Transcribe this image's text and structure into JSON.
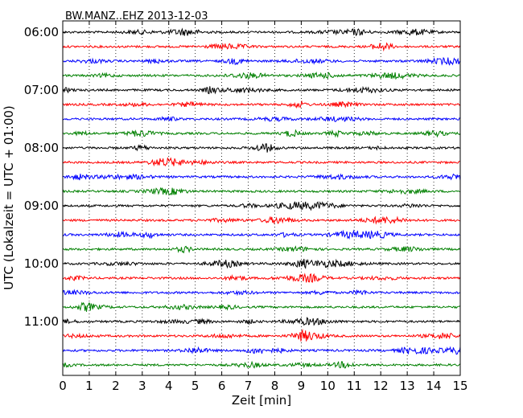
{
  "chart_data": {
    "type": "line",
    "title": "BW.MANZ..EHZ 2013-12-03",
    "xlabel": "Zeit  [min]",
    "ylabel": "UTC (Lokalzeit = UTC + 01:00)",
    "xlim": [
      0,
      15
    ],
    "x_ticks": [
      "0",
      "1",
      "2",
      "3",
      "4",
      "5",
      "6",
      "7",
      "8",
      "9",
      "10",
      "11",
      "12",
      "13",
      "14",
      "15"
    ],
    "y_ticks": [
      "06:00",
      "07:00",
      "08:00",
      "09:00",
      "10:00",
      "11:00"
    ],
    "grid": "vertical dotted",
    "trace_colors": [
      "#000000",
      "#ff0000",
      "#0000ff",
      "#008000"
    ],
    "series": [
      {
        "start": "06:00",
        "color": "#000000"
      },
      {
        "start": "06:15",
        "color": "#ff0000"
      },
      {
        "start": "06:30",
        "color": "#0000ff"
      },
      {
        "start": "06:45",
        "color": "#008000"
      },
      {
        "start": "07:00",
        "color": "#000000"
      },
      {
        "start": "07:15",
        "color": "#ff0000"
      },
      {
        "start": "07:30",
        "color": "#0000ff"
      },
      {
        "start": "07:45",
        "color": "#008000"
      },
      {
        "start": "08:00",
        "color": "#000000"
      },
      {
        "start": "08:15",
        "color": "#ff0000"
      },
      {
        "start": "08:30",
        "color": "#0000ff"
      },
      {
        "start": "08:45",
        "color": "#008000"
      },
      {
        "start": "09:00",
        "color": "#000000"
      },
      {
        "start": "09:15",
        "color": "#ff0000"
      },
      {
        "start": "09:30",
        "color": "#0000ff"
      },
      {
        "start": "09:45",
        "color": "#008000"
      },
      {
        "start": "10:00",
        "color": "#000000"
      },
      {
        "start": "10:15",
        "color": "#ff0000"
      },
      {
        "start": "10:30",
        "color": "#0000ff"
      },
      {
        "start": "10:45",
        "color": "#008000"
      },
      {
        "start": "11:00",
        "color": "#000000"
      },
      {
        "start": "11:15",
        "color": "#ff0000"
      },
      {
        "start": "11:30",
        "color": "#0000ff"
      },
      {
        "start": "11:45",
        "color": "#008000"
      }
    ]
  }
}
